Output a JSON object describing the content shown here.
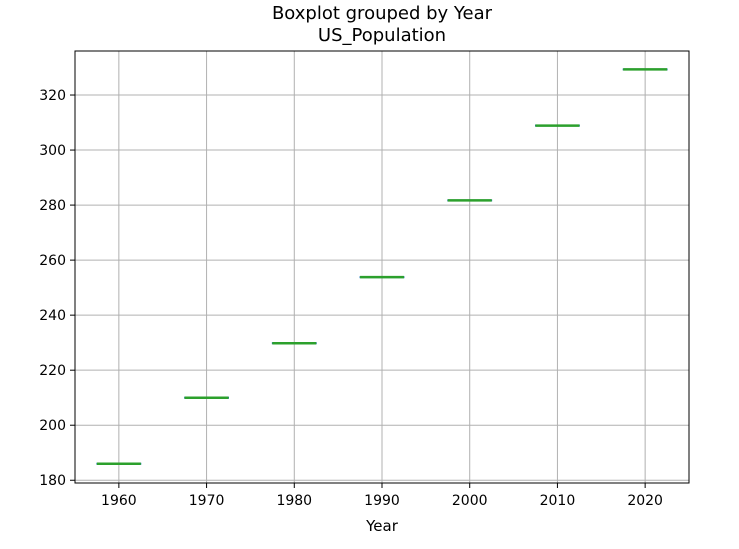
{
  "chart_data": {
    "type": "box",
    "title": "Boxplot grouped by Year",
    "subtitle": "US_Population",
    "xlabel": "Year",
    "ylabel": "",
    "categories": [
      "1960",
      "1970",
      "1980",
      "1990",
      "2000",
      "2010",
      "2020"
    ],
    "values": [
      186.0,
      210.0,
      229.8,
      253.8,
      281.7,
      308.9,
      329.3
    ],
    "y_ticks": [
      180,
      200,
      220,
      240,
      260,
      280,
      300,
      320
    ],
    "ylim": [
      179.0,
      336.0
    ],
    "grid": true,
    "colors": {
      "box": "#1f77b4",
      "median": "#2ca02c",
      "grid": "#b0b0b0",
      "axis": "#000000"
    }
  }
}
